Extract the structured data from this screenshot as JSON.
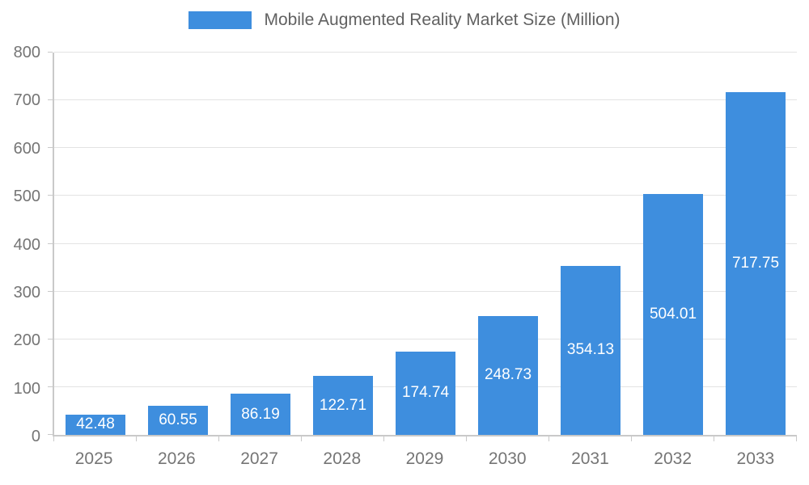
{
  "chart_data": {
    "type": "bar",
    "title": "Mobile Augmented Reality Market Size (Million)",
    "categories": [
      "2025",
      "2026",
      "2027",
      "2028",
      "2029",
      "2030",
      "2031",
      "2032",
      "2033"
    ],
    "values": [
      42.48,
      60.55,
      86.19,
      122.71,
      174.74,
      248.73,
      354.13,
      504.01,
      717.75
    ],
    "value_labels": [
      "42.48",
      "60.55",
      "86.19",
      "122.71",
      "174.74",
      "248.73",
      "354.13",
      "504.01",
      "717.75"
    ],
    "xlabel": "",
    "ylabel": "",
    "ylim": [
      0,
      800
    ],
    "yticks": [
      0,
      100,
      200,
      300,
      400,
      500,
      600,
      700,
      800
    ],
    "grid": true,
    "legend_position": "top",
    "bar_color": "#3e8ede",
    "value_label_color": "#ffffff",
    "axis_text_color": "#757575",
    "title_color": "#616161",
    "gridline_color": "#e3e3e3",
    "axis_line_color": "#c9c9c9"
  }
}
